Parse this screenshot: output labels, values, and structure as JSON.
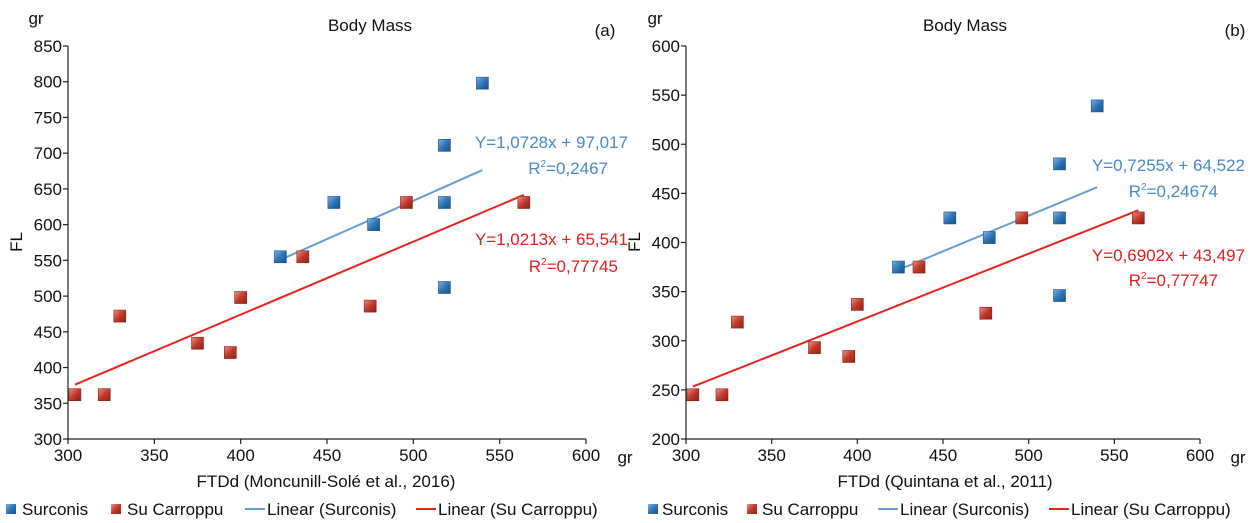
{
  "colors": {
    "surconis": "#2E75B6",
    "su_carroppu": "#C0392B",
    "linear_surconis": "#6A9BD1",
    "linear_su_carroppu": "#E8231E",
    "eq_surconis": "#4A86C8",
    "eq_su_carroppu": "#E02020"
  },
  "legend": {
    "surconis": "Surconis",
    "su_carroppu": "Su Carroppu",
    "linear_surconis": "Linear (Surconis)",
    "linear_su_carroppu": "Linear (Su Carroppu)"
  },
  "chart_data": [
    {
      "type": "scatter",
      "panel_label": "(a)",
      "title": "Body Mass",
      "xlabel": "FTDd (Moncunill-Solé et al., 2016)",
      "ylabel": "FL",
      "x_unit": "gr",
      "y_unit": "gr",
      "xlim": [
        300,
        600
      ],
      "ylim": [
        300,
        850
      ],
      "x_ticks": [
        300,
        350,
        400,
        450,
        500,
        550,
        600
      ],
      "y_ticks": [
        300,
        350,
        400,
        450,
        500,
        550,
        600,
        650,
        700,
        750,
        800,
        850
      ],
      "series": [
        {
          "name": "Surconis",
          "points": [
            [
              423,
              555
            ],
            [
              454,
              631
            ],
            [
              477,
              600
            ],
            [
              518,
              711
            ],
            [
              518,
              631
            ],
            [
              518,
              512
            ],
            [
              540,
              798
            ]
          ]
        },
        {
          "name": "Su Carroppu",
          "points": [
            [
              304,
              362
            ],
            [
              321,
              362
            ],
            [
              330,
              472
            ],
            [
              375,
              434
            ],
            [
              394,
              421
            ],
            [
              400,
              498
            ],
            [
              436,
              555
            ],
            [
              475,
              486
            ],
            [
              496,
              631
            ],
            [
              564,
              631
            ]
          ]
        }
      ],
      "trendlines": [
        {
          "name": "Linear (Surconis)",
          "x_range": [
            423,
            540
          ],
          "slope": 1.0728,
          "intercept": 97.017,
          "equation": "Y=1,0728x + 97,017",
          "r2": "=0,2467"
        },
        {
          "name": "Linear (Su Carroppu)",
          "x_range": [
            304,
            564
          ],
          "slope": 1.0213,
          "intercept": 65.541,
          "equation": "Y=1,0213x + 65,541",
          "r2": "=0,77745"
        }
      ]
    },
    {
      "type": "scatter",
      "panel_label": "(b)",
      "title": "Body Mass",
      "xlabel": "FTDd (Quintana et al., 2011)",
      "ylabel": "FL",
      "x_unit": "gr",
      "y_unit": "gr",
      "xlim": [
        300,
        600
      ],
      "ylim": [
        200,
        600
      ],
      "x_ticks": [
        300,
        350,
        400,
        450,
        500,
        550,
        600
      ],
      "y_ticks": [
        200,
        250,
        300,
        350,
        400,
        450,
        500,
        550,
        600
      ],
      "series": [
        {
          "name": "Surconis",
          "points": [
            [
              424,
              375
            ],
            [
              454,
              425
            ],
            [
              477,
              405
            ],
            [
              518,
              480
            ],
            [
              518,
              425
            ],
            [
              518,
              346
            ],
            [
              540,
              539
            ]
          ]
        },
        {
          "name": "Su Carroppu",
          "points": [
            [
              304,
              245
            ],
            [
              321,
              245
            ],
            [
              330,
              319
            ],
            [
              375,
              293
            ],
            [
              395,
              284
            ],
            [
              400,
              337
            ],
            [
              436,
              375
            ],
            [
              475,
              328
            ],
            [
              496,
              425
            ],
            [
              564,
              425
            ]
          ]
        }
      ],
      "trendlines": [
        {
          "name": "Linear (Surconis)",
          "x_range": [
            424,
            540
          ],
          "slope": 0.7255,
          "intercept": 64.522,
          "equation": "Y=0,7255x + 64,522",
          "r2": "=0,24674"
        },
        {
          "name": "Linear (Su Carroppu)",
          "x_range": [
            304,
            564
          ],
          "slope": 0.6902,
          "intercept": 43.497,
          "equation": "Y=0,6902x + 43,497",
          "r2": "=0,77747"
        }
      ]
    }
  ]
}
